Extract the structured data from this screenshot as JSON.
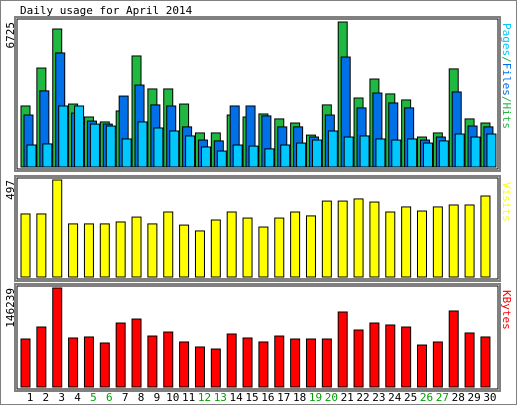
{
  "title": "Daily usage for April 2014",
  "legend_separator": "/",
  "chart_data": [
    {
      "type": "bar",
      "ylim": [
        0,
        6725
      ],
      "yticks": [
        6725
      ],
      "series": [
        {
          "name": "Pages",
          "color": "#00c8ff",
          "values": [
            1020,
            1070,
            2830,
            2830,
            1990,
            1900,
            1300,
            2090,
            1810,
            1670,
            1440,
            930,
            740,
            1020,
            970,
            840,
            1020,
            1110,
            1250,
            1670,
            1390,
            1440,
            1300,
            1250,
            1300,
            1110,
            1210,
            1530,
            1390,
            1530
          ]
        },
        {
          "name": "Files",
          "color": "#0070e8",
          "values": [
            2410,
            3530,
            5290,
            2500,
            2130,
            1990,
            3290,
            3800,
            2880,
            2830,
            1860,
            1250,
            1210,
            2830,
            2830,
            2370,
            1860,
            1860,
            1390,
            2410,
            5100,
            2740,
            3430,
            2970,
            2740,
            1250,
            1390,
            3480,
            1900,
            1860
          ]
        },
        {
          "name": "Hits",
          "color": "#20b840",
          "values": [
            2830,
            4590,
            6400,
            2920,
            2320,
            2090,
            2600,
            5150,
            3620,
            3620,
            2920,
            1580,
            1580,
            2410,
            2320,
            2460,
            2230,
            2040,
            1480,
            2880,
            6725,
            3200,
            4080,
            3390,
            3110,
            1390,
            1580,
            4550,
            2230,
            2040
          ]
        }
      ]
    },
    {
      "type": "bar",
      "ylim": [
        0,
        497
      ],
      "yticks": [
        497
      ],
      "series": [
        {
          "name": "Visits",
          "color": "#ffff00",
          "values": [
            323,
            323,
            497,
            272,
            272,
            272,
            282,
            307,
            272,
            333,
            266,
            236,
            292,
            333,
            302,
            256,
            302,
            333,
            313,
            389,
            389,
            400,
            384,
            333,
            359,
            338,
            359,
            369,
            369,
            415
          ]
        }
      ]
    },
    {
      "type": "bar",
      "ylim": [
        0,
        146239
      ],
      "yticks": [
        146239
      ],
      "categories": [
        "1",
        "2",
        "3",
        "4",
        "5",
        "6",
        "7",
        "8",
        "9",
        "10",
        "11",
        "12",
        "13",
        "14",
        "15",
        "16",
        "17",
        "18",
        "19",
        "20",
        "21",
        "22",
        "23",
        "24",
        "25",
        "26",
        "27",
        "28",
        "29",
        "30"
      ],
      "category_colors": [
        "#000000",
        "#000000",
        "#000000",
        "#000000",
        "#00a000",
        "#00a000",
        "#000000",
        "#000000",
        "#000000",
        "#000000",
        "#000000",
        "#00a000",
        "#00a000",
        "#000000",
        "#000000",
        "#000000",
        "#000000",
        "#000000",
        "#00a000",
        "#00a000",
        "#000000",
        "#000000",
        "#000000",
        "#000000",
        "#000000",
        "#00a000",
        "#00a000",
        "#000000",
        "#000000",
        "#000000"
      ],
      "series": [
        {
          "name": "KBytes",
          "color": "#ff0000",
          "values": [
            70900,
            88600,
            146239,
            72400,
            73900,
            65000,
            94500,
            100400,
            75300,
            81200,
            66500,
            59100,
            56100,
            78300,
            72400,
            66500,
            75300,
            70900,
            70900,
            70900,
            110800,
            84200,
            94500,
            91600,
            88600,
            62000,
            66500,
            112300,
            79800,
            73900
          ]
        }
      ]
    }
  ]
}
